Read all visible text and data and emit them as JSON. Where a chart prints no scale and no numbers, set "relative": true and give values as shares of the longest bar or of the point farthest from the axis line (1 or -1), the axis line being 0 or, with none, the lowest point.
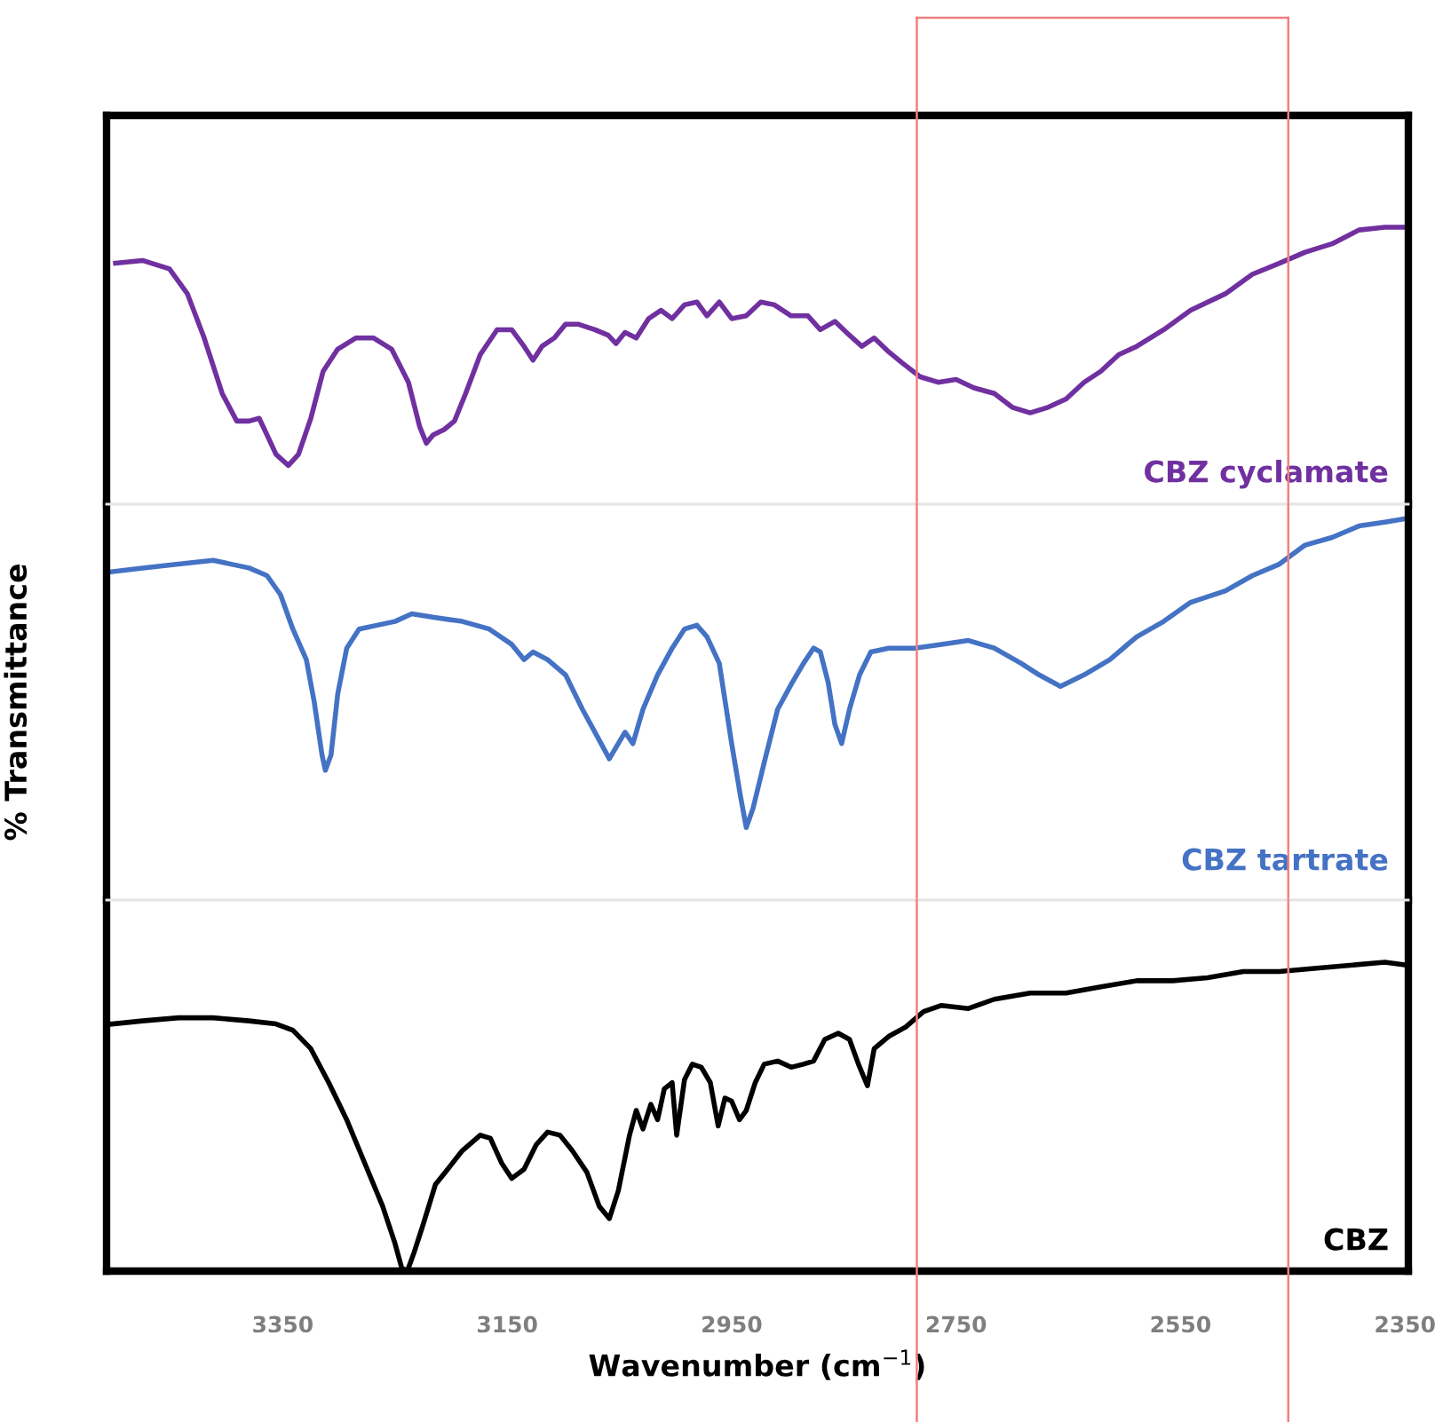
{
  "chart_data": [
    {
      "type": "line",
      "relative": true,
      "xlim": [
        3507,
        2347
      ],
      "tick_labels": false,
      "ref_lines": [
        {
          "axis": "x",
          "value": 2785,
          "color": "#f08080"
        },
        {
          "axis": "x",
          "value": 2454,
          "color": "#f08080"
        }
      ],
      "series": [
        {
          "name": "CBZ cyclamate",
          "color": "#7030a0",
          "x": [
            3499,
            3475,
            3451,
            3435,
            3420,
            3404,
            3391,
            3380,
            3371,
            3364,
            3356,
            3345,
            3336,
            3325,
            3314,
            3301,
            3285,
            3269,
            3253,
            3238,
            3228,
            3222,
            3216,
            3206,
            3197,
            3187,
            3174,
            3159,
            3146,
            3135,
            3127,
            3119,
            3108,
            3098,
            3087,
            3072,
            3060,
            3053,
            3045,
            3035,
            3024,
            3013,
            3003,
            2992,
            2981,
            2972,
            2961,
            2950,
            2937,
            2924,
            2912,
            2897,
            2882,
            2871,
            2858,
            2845,
            2834,
            2823,
            2810,
            2798,
            2782,
            2766,
            2750,
            2734,
            2716,
            2700,
            2684,
            2668,
            2652,
            2636,
            2621,
            2605,
            2589,
            2565,
            2541,
            2510,
            2486,
            2462,
            2439,
            2415,
            2391,
            2368,
            2352
          ],
          "values": [
            0.87,
            0.88,
            0.85,
            0.76,
            0.6,
            0.4,
            0.3,
            0.3,
            0.31,
            0.25,
            0.18,
            0.14,
            0.18,
            0.31,
            0.48,
            0.56,
            0.6,
            0.6,
            0.56,
            0.44,
            0.28,
            0.22,
            0.25,
            0.27,
            0.3,
            0.4,
            0.54,
            0.63,
            0.63,
            0.57,
            0.52,
            0.57,
            0.6,
            0.65,
            0.65,
            0.63,
            0.61,
            0.58,
            0.62,
            0.6,
            0.67,
            0.7,
            0.67,
            0.72,
            0.73,
            0.68,
            0.73,
            0.67,
            0.68,
            0.73,
            0.72,
            0.68,
            0.68,
            0.63,
            0.66,
            0.61,
            0.57,
            0.6,
            0.55,
            0.51,
            0.46,
            0.44,
            0.45,
            0.42,
            0.4,
            0.35,
            0.33,
            0.35,
            0.38,
            0.44,
            0.48,
            0.54,
            0.57,
            0.63,
            0.7,
            0.76,
            0.83,
            0.87,
            0.91,
            0.94,
            0.99,
            1,
            1
          ]
        }
      ]
    },
    {
      "type": "line",
      "relative": true,
      "xlim": [
        3507,
        2347
      ],
      "tick_labels": false,
      "ylabel": "% Transmittance",
      "ref_lines": [
        {
          "axis": "x",
          "value": 2785,
          "color": "#f08080"
        },
        {
          "axis": "x",
          "value": 2454,
          "color": "#f08080"
        }
      ],
      "series": [
        {
          "name": "CBZ tartrate",
          "color": "#4472c4",
          "x": [
            3503,
            3475,
            3443,
            3412,
            3380,
            3364,
            3352,
            3341,
            3329,
            3322,
            3315,
            3312,
            3307,
            3301,
            3293,
            3282,
            3266,
            3250,
            3235,
            3214,
            3190,
            3166,
            3146,
            3135,
            3127,
            3114,
            3098,
            3083,
            3070,
            3059,
            3051,
            3045,
            3038,
            3029,
            3016,
            3003,
            2992,
            2981,
            2972,
            2961,
            2950,
            2942,
            2937,
            2931,
            2921,
            2909,
            2896,
            2886,
            2877,
            2871,
            2864,
            2858,
            2852,
            2845,
            2836,
            2826,
            2810,
            2787,
            2763,
            2739,
            2716,
            2692,
            2676,
            2657,
            2636,
            2613,
            2589,
            2565,
            2541,
            2510,
            2486,
            2462,
            2439,
            2415,
            2391,
            2368,
            2348
          ],
          "values": [
            0.86,
            0.87,
            0.88,
            0.89,
            0.87,
            0.85,
            0.8,
            0.71,
            0.63,
            0.52,
            0.38,
            0.34,
            0.38,
            0.54,
            0.66,
            0.71,
            0.72,
            0.73,
            0.75,
            0.74,
            0.73,
            0.71,
            0.67,
            0.63,
            0.65,
            0.63,
            0.59,
            0.5,
            0.43,
            0.37,
            0.41,
            0.44,
            0.41,
            0.5,
            0.59,
            0.66,
            0.71,
            0.72,
            0.69,
            0.62,
            0.41,
            0.27,
            0.19,
            0.24,
            0.36,
            0.5,
            0.57,
            0.62,
            0.66,
            0.65,
            0.57,
            0.46,
            0.41,
            0.5,
            0.59,
            0.65,
            0.66,
            0.66,
            0.67,
            0.68,
            0.66,
            0.62,
            0.59,
            0.56,
            0.59,
            0.63,
            0.69,
            0.73,
            0.78,
            0.81,
            0.85,
            0.88,
            0.93,
            0.95,
            0.98,
            0.99,
            1
          ]
        }
      ]
    },
    {
      "type": "line",
      "relative": true,
      "xlim": [
        3507,
        2347
      ],
      "tick_labels": "x",
      "xlabel": "Wavenumber (cm$^{−1}$)",
      "xticks": [
        3350,
        3150,
        2950,
        2750,
        2550,
        2350
      ],
      "ref_lines": [
        {
          "axis": "x",
          "value": 2785,
          "color": "#f08080"
        },
        {
          "axis": "x",
          "value": 2454,
          "color": "#f08080"
        }
      ],
      "series": [
        {
          "name": "CBZ",
          "color": "#000000",
          "x": [
            3502,
            3475,
            3443,
            3412,
            3380,
            3356,
            3341,
            3325,
            3309,
            3293,
            3277,
            3261,
            3250,
            3244,
            3239,
            3233,
            3225,
            3214,
            3203,
            3190,
            3174,
            3165,
            3155,
            3146,
            3135,
            3124,
            3114,
            3103,
            3092,
            3079,
            3068,
            3059,
            3051,
            3041,
            3035,
            3029,
            3022,
            3016,
            3010,
            3003,
            2999,
            2992,
            2985,
            2977,
            2969,
            2962,
            2956,
            2950,
            2943,
            2937,
            2929,
            2921,
            2909,
            2897,
            2886,
            2877,
            2867,
            2855,
            2845,
            2837,
            2829,
            2823,
            2810,
            2795,
            2779,
            2763,
            2739,
            2716,
            2684,
            2652,
            2621,
            2589,
            2557,
            2526,
            2494,
            2462,
            2431,
            2399,
            2368,
            2348
          ],
          "values": [
            0.8,
            0.81,
            0.82,
            0.82,
            0.81,
            0.8,
            0.78,
            0.72,
            0.61,
            0.49,
            0.35,
            0.21,
            0.09,
            0.01,
            0,
            0.06,
            0.15,
            0.28,
            0.33,
            0.39,
            0.44,
            0.43,
            0.35,
            0.3,
            0.33,
            0.41,
            0.45,
            0.44,
            0.39,
            0.32,
            0.21,
            0.17,
            0.26,
            0.44,
            0.52,
            0.46,
            0.54,
            0.49,
            0.59,
            0.61,
            0.44,
            0.62,
            0.67,
            0.66,
            0.61,
            0.47,
            0.56,
            0.55,
            0.49,
            0.52,
            0.61,
            0.67,
            0.68,
            0.66,
            0.67,
            0.68,
            0.75,
            0.77,
            0.75,
            0.67,
            0.6,
            0.72,
            0.76,
            0.79,
            0.84,
            0.86,
            0.85,
            0.88,
            0.9,
            0.9,
            0.92,
            0.94,
            0.94,
            0.95,
            0.97,
            0.97,
            0.98,
            0.99,
            1,
            0.99
          ]
        }
      ]
    }
  ]
}
